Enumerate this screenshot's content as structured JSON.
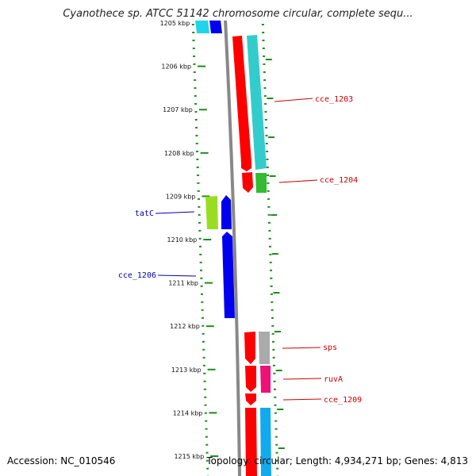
{
  "title": "Cyanothece sp. ATCC 51142 chromosome circular, complete sequ...",
  "accession": "Accession: NC_010546",
  "topology": "Topology: circular; Length: 4,934,271 bp; Genes: 4,813",
  "ticks": [
    "1205 kbp",
    "1206 kbp",
    "1207 kbp",
    "1208 kbp",
    "1209 kbp",
    "1210 kbp",
    "1211 kbp",
    "1212 kbp",
    "1213 kbp",
    "1214 kbp",
    "1215 kbp"
  ],
  "gene_labels": [
    {
      "name": "cce_1203",
      "side": "right",
      "color": "#cc0000"
    },
    {
      "name": "cce_1204",
      "side": "right",
      "color": "#cc0000"
    },
    {
      "name": "tatC",
      "side": "left",
      "color": "#0000aa"
    },
    {
      "name": "cce_1206",
      "side": "left",
      "color": "#0000aa"
    },
    {
      "name": "sps",
      "side": "right",
      "color": "#cc0000"
    },
    {
      "name": "ruvA",
      "side": "right",
      "color": "#cc0000"
    },
    {
      "name": "cce_1209",
      "side": "right",
      "color": "#cc0000"
    }
  ],
  "colors": {
    "cds": "#ff0000",
    "cyan_feature": "#33cccc",
    "green_feature": "#33bb33",
    "yellowgreen_feature": "#99dd22",
    "blue_feature": "#0000ee",
    "grey_feature": "#aaaaaa",
    "magenta_feature": "#ee1177",
    "lightblue_feature": "#11aaee",
    "backbone": "#888888",
    "tick_marks": "#228822"
  }
}
